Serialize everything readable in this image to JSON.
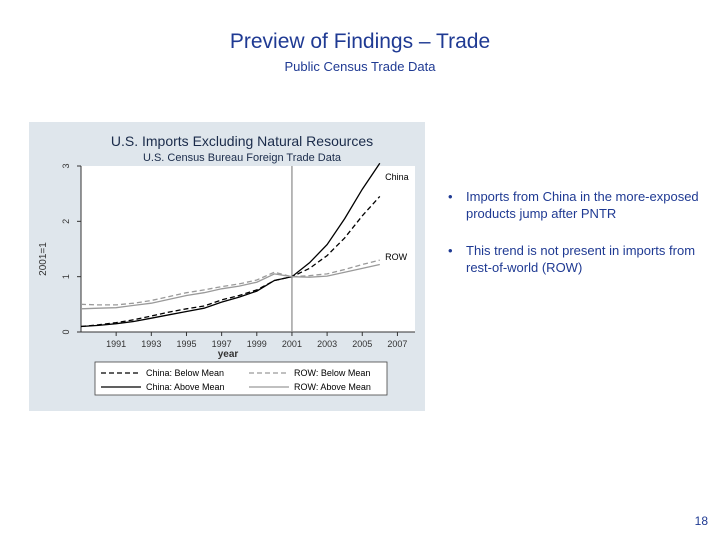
{
  "slide": {
    "title": "Preview of Findings – Trade",
    "subtitle": "Public Census Trade Data",
    "page_number": "18"
  },
  "bullets": [
    {
      "marker": "•",
      "text": "Imports from China in the more-exposed products jump after PNTR"
    },
    {
      "marker": "•",
      "text": "This trend is not present in imports from rest-of-world (ROW)"
    }
  ],
  "colors": {
    "text_blue": "#1f3a93",
    "panel_bg": "#dfe6ec",
    "plot_bg": "#ffffff",
    "china_line": "#000000",
    "row_line": "#9a9a9a",
    "vline": "#8a8a8a"
  },
  "chart_data": {
    "type": "line",
    "title": "U.S. Imports Excluding Natural Resources",
    "subtitle": "U.S. Census Bureau Foreign Trade Data",
    "xlabel": "year",
    "ylabel": "2001=1",
    "xlim": [
      1989,
      2008
    ],
    "ylim": [
      0,
      3
    ],
    "x_ticks": [
      1991,
      1993,
      1995,
      1997,
      1999,
      2001,
      2003,
      2005,
      2007
    ],
    "y_ticks": [
      0,
      1,
      2,
      3
    ],
    "vline_x": 2001,
    "annotations": [
      {
        "text": "China",
        "x": 2006.3,
        "y": 2.75
      },
      {
        "text": "ROW",
        "x": 2006.3,
        "y": 1.3
      }
    ],
    "x": [
      1989,
      1990,
      1991,
      1992,
      1993,
      1994,
      1995,
      1996,
      1997,
      1998,
      1999,
      2000,
      2001,
      2002,
      2003,
      2004,
      2005,
      2006
    ],
    "series": [
      {
        "name": "China: Below Mean",
        "style": "dashed",
        "color": "#000000",
        "values": [
          0.1,
          0.13,
          0.17,
          0.22,
          0.29,
          0.36,
          0.42,
          0.47,
          0.58,
          0.66,
          0.76,
          0.93,
          1.0,
          1.15,
          1.38,
          1.7,
          2.1,
          2.45
        ]
      },
      {
        "name": "China: Above Mean",
        "style": "solid",
        "color": "#000000",
        "values": [
          0.1,
          0.12,
          0.15,
          0.19,
          0.25,
          0.31,
          0.37,
          0.43,
          0.54,
          0.63,
          0.74,
          0.93,
          1.0,
          1.25,
          1.58,
          2.05,
          2.58,
          3.05
        ]
      },
      {
        "name": "ROW: Below Mean",
        "style": "dashed",
        "color": "#9a9a9a",
        "values": [
          0.5,
          0.49,
          0.49,
          0.52,
          0.57,
          0.64,
          0.71,
          0.76,
          0.82,
          0.87,
          0.94,
          1.08,
          1.0,
          1.02,
          1.05,
          1.13,
          1.22,
          1.3
        ]
      },
      {
        "name": "ROW: Above Mean",
        "style": "solid",
        "color": "#9a9a9a",
        "values": [
          0.42,
          0.43,
          0.44,
          0.48,
          0.52,
          0.59,
          0.66,
          0.71,
          0.78,
          0.83,
          0.9,
          1.05,
          1.0,
          0.99,
          1.01,
          1.08,
          1.15,
          1.22
        ]
      }
    ],
    "legend": {
      "placement": "bottom",
      "columns": 2,
      "order": [
        "China: Below Mean",
        "ROW: Below Mean",
        "China: Above Mean",
        "ROW: Above Mean"
      ]
    },
    "grid": false
  }
}
